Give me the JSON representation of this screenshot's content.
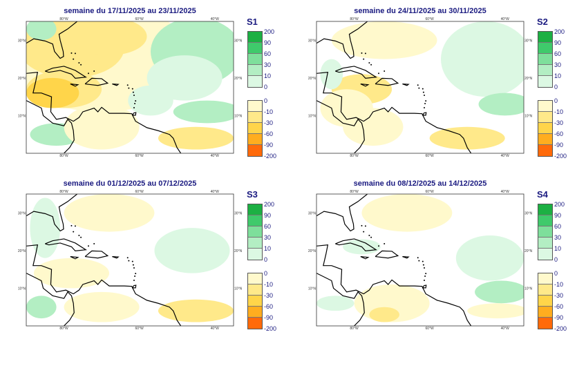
{
  "maps": [
    {
      "title": "semaine du 17/11/2025 au 23/11/2025",
      "label": "S1"
    },
    {
      "title": "semaine du 24/11/2025 au 30/11/2025",
      "label": "S2"
    },
    {
      "title": "semaine du 01/12/2025 au 07/12/2025",
      "label": "S3"
    },
    {
      "title": "semaine du 08/12/2025 au 14/12/2025",
      "label": "S4"
    }
  ],
  "axes": {
    "lon_labels": [
      "80°W",
      "60°W",
      "40°W"
    ],
    "lat_labels": [
      "30°N",
      "20°N",
      "10°N"
    ],
    "extent": {
      "lon": [
        -90,
        -35
      ],
      "lat": [
        0,
        35
      ]
    }
  },
  "legend": {
    "positive": {
      "values": [
        "200",
        "90",
        "60",
        "30",
        "10",
        "0"
      ],
      "colors": [
        "#1cb043",
        "#3fca6b",
        "#7edf9b",
        "#b3eec3",
        "#dcf8e3"
      ]
    },
    "negative": {
      "values": [
        "0",
        "-10",
        "-30",
        "-60",
        "-90",
        "-200"
      ],
      "colors": [
        "#fff9cc",
        "#ffe98a",
        "#ffd54a",
        "#ffad1f",
        "#ff6a0a"
      ]
    }
  }
}
